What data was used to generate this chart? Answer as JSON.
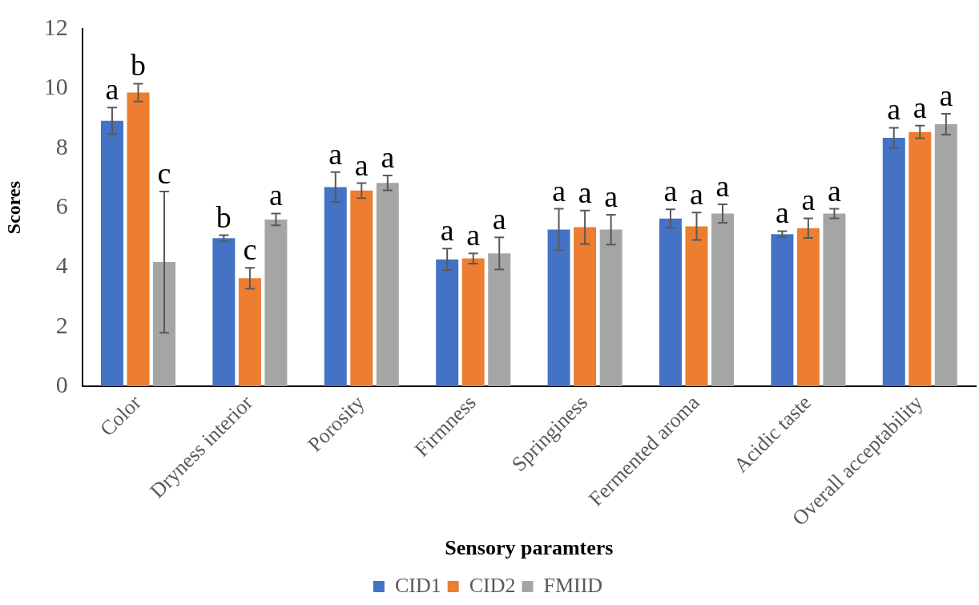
{
  "chart_data": {
    "type": "bar",
    "xlabel": "Sensory paramters",
    "ylabel": "Scores",
    "categories": [
      "Color",
      "Dryness interior",
      "Porosity",
      "Firmness",
      "Springiness",
      "Fermented aroma",
      "Acidic taste",
      "Overall acceptability"
    ],
    "series": [
      {
        "name": "CID1",
        "color": "#4472c4",
        "values": [
          8.91,
          4.97,
          6.69,
          4.26,
          5.26,
          5.63,
          5.11,
          8.34
        ],
        "errors": [
          0.45,
          0.1,
          0.5,
          0.36,
          0.7,
          0.31,
          0.1,
          0.34
        ]
      },
      {
        "name": "CID2",
        "color": "#ed7d31",
        "values": [
          9.86,
          3.63,
          6.57,
          4.29,
          5.34,
          5.37,
          5.31,
          8.54
        ],
        "errors": [
          0.3,
          0.35,
          0.25,
          0.17,
          0.56,
          0.46,
          0.33,
          0.21
        ]
      },
      {
        "name": "FMIID",
        "color": "#a5a5a5",
        "values": [
          4.17,
          5.6,
          6.83,
          4.46,
          5.26,
          5.8,
          5.8,
          8.8
        ],
        "errors": [
          2.37,
          0.2,
          0.25,
          0.54,
          0.5,
          0.31,
          0.16,
          0.35
        ]
      }
    ],
    "ylim": [
      0,
      12
    ],
    "yticks": [
      0,
      2,
      4,
      6,
      8,
      10,
      12
    ],
    "grid": false,
    "legend": "bottom",
    "annotations": [
      "a",
      "b",
      "c",
      "b",
      "c",
      "a",
      "a",
      "a",
      "a",
      "a",
      "a",
      "a",
      "a",
      "a",
      "a",
      "a",
      "a",
      "a",
      "a",
      "a",
      "a",
      "a",
      "a",
      "a"
    ]
  }
}
